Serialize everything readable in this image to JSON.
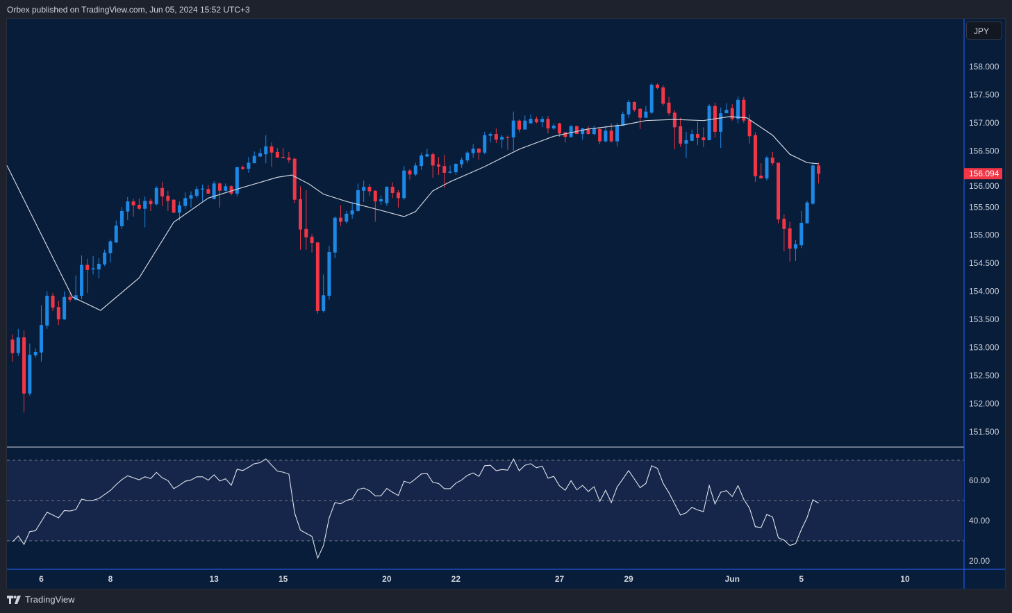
{
  "header": {
    "publisher_line": "Orbex published on TradingView.com, Jun 05, 2024 15:52 UTC+3"
  },
  "price_axis": {
    "currency_button": "JPY",
    "last_price_label": "156.094"
  },
  "footer": {
    "brand": "TradingView",
    "logo_icon": "tradingview-logo-icon"
  },
  "colors": {
    "background": "#071d3a",
    "outer": "#1e222d",
    "up": "#1e88e5",
    "down": "#f23645",
    "ma_line": "#d1d4dc",
    "rsi_line": "#e0e3eb",
    "rsi_band": "#15264a",
    "axis_line": "#2962ff"
  },
  "chart_data": {
    "type": "candlestick",
    "price_ticks": [
      "158.000",
      "157.500",
      "157.000",
      "156.500",
      "156.000",
      "155.500",
      "155.000",
      "154.500",
      "154.000",
      "153.500",
      "153.000",
      "152.500",
      "152.000",
      "151.500"
    ],
    "price_range": [
      151.3,
      158.38
    ],
    "last_price": 156.094,
    "time_ticks": [
      {
        "label": "6",
        "index": 5
      },
      {
        "label": "8",
        "index": 17
      },
      {
        "label": "13",
        "index": 35
      },
      {
        "label": "15",
        "index": 47
      },
      {
        "label": "20",
        "index": 65
      },
      {
        "label": "22",
        "index": 77
      },
      {
        "label": "27",
        "index": 95
      },
      {
        "label": "29",
        "index": 107
      },
      {
        "label": "Jun",
        "index": 125
      },
      {
        "label": "5",
        "index": 137
      },
      {
        "label": "10",
        "index": 155
      }
    ],
    "candles_ohlc": [
      [
        153.14,
        153.23,
        152.75,
        152.9
      ],
      [
        152.9,
        153.33,
        152.85,
        153.18
      ],
      [
        153.18,
        153.3,
        151.84,
        152.18
      ],
      [
        152.18,
        153.07,
        152.14,
        152.87
      ],
      [
        152.86,
        152.98,
        152.82,
        152.92
      ],
      [
        152.91,
        153.75,
        152.75,
        153.4
      ],
      [
        153.39,
        154.0,
        153.33,
        153.92
      ],
      [
        153.92,
        153.97,
        153.65,
        153.71
      ],
      [
        153.72,
        153.83,
        153.4,
        153.5
      ],
      [
        153.5,
        154.0,
        153.49,
        153.9
      ],
      [
        153.9,
        153.96,
        153.81,
        153.85
      ],
      [
        153.85,
        154.28,
        153.83,
        153.93
      ],
      [
        153.92,
        154.64,
        153.86,
        154.47
      ],
      [
        154.47,
        154.58,
        153.97,
        154.38
      ],
      [
        154.4,
        154.63,
        154.3,
        154.41
      ],
      [
        154.39,
        154.59,
        154.23,
        154.49
      ],
      [
        154.48,
        154.74,
        154.45,
        154.69
      ],
      [
        154.68,
        154.92,
        154.51,
        154.89
      ],
      [
        154.87,
        155.26,
        154.86,
        155.17
      ],
      [
        155.16,
        155.5,
        155.11,
        155.43
      ],
      [
        155.42,
        155.68,
        155.27,
        155.6
      ],
      [
        155.6,
        155.65,
        155.33,
        155.53
      ],
      [
        155.54,
        155.65,
        155.45,
        155.47
      ],
      [
        155.47,
        155.69,
        155.14,
        155.61
      ],
      [
        155.61,
        155.65,
        155.43,
        155.55
      ],
      [
        155.55,
        155.87,
        155.53,
        155.84
      ],
      [
        155.84,
        155.95,
        155.52,
        155.69
      ],
      [
        155.7,
        155.79,
        155.43,
        155.61
      ],
      [
        155.63,
        155.64,
        155.39,
        155.4
      ],
      [
        155.4,
        155.6,
        155.26,
        155.53
      ],
      [
        155.52,
        155.76,
        155.47,
        155.66
      ],
      [
        155.65,
        155.78,
        155.49,
        155.71
      ],
      [
        155.7,
        155.87,
        155.66,
        155.82
      ],
      [
        155.82,
        155.9,
        155.6,
        155.83
      ],
      [
        155.82,
        155.89,
        155.73,
        155.74
      ],
      [
        155.64,
        155.96,
        155.64,
        155.92
      ],
      [
        155.92,
        155.94,
        155.49,
        155.79
      ],
      [
        155.79,
        155.92,
        155.78,
        155.87
      ],
      [
        155.87,
        155.89,
        155.71,
        155.74
      ],
      [
        155.74,
        156.22,
        155.69,
        156.21
      ],
      [
        156.21,
        156.24,
        156.16,
        156.18
      ],
      [
        156.18,
        156.39,
        156.11,
        156.29
      ],
      [
        156.28,
        156.49,
        156.28,
        156.41
      ],
      [
        156.4,
        156.54,
        156.39,
        156.46
      ],
      [
        156.44,
        156.78,
        156.28,
        156.58
      ],
      [
        156.58,
        156.65,
        156.22,
        156.47
      ],
      [
        156.48,
        156.55,
        156.38,
        156.38
      ],
      [
        156.39,
        156.55,
        156.38,
        156.38
      ],
      [
        156.38,
        156.48,
        156.29,
        156.34
      ],
      [
        156.36,
        156.38,
        155.57,
        155.63
      ],
      [
        155.64,
        155.87,
        154.74,
        155.1
      ],
      [
        155.11,
        155.8,
        154.74,
        154.96
      ],
      [
        154.97,
        155.02,
        154.69,
        154.86
      ],
      [
        154.87,
        154.87,
        153.6,
        153.65
      ],
      [
        153.65,
        154.3,
        153.62,
        153.93
      ],
      [
        153.92,
        154.81,
        153.85,
        154.7
      ],
      [
        154.69,
        155.33,
        154.59,
        155.31
      ],
      [
        155.31,
        155.53,
        155.16,
        155.24
      ],
      [
        155.24,
        155.43,
        155.21,
        155.38
      ],
      [
        155.37,
        155.59,
        155.29,
        155.44
      ],
      [
        155.43,
        155.92,
        155.42,
        155.8
      ],
      [
        155.79,
        155.97,
        155.59,
        155.86
      ],
      [
        155.86,
        155.91,
        155.7,
        155.78
      ],
      [
        155.79,
        155.8,
        155.24,
        155.6
      ],
      [
        155.6,
        155.71,
        155.54,
        155.64
      ],
      [
        155.57,
        155.87,
        155.52,
        155.86
      ],
      [
        155.86,
        155.94,
        155.66,
        155.75
      ],
      [
        155.76,
        155.8,
        155.49,
        155.66
      ],
      [
        155.66,
        156.23,
        155.63,
        156.15
      ],
      [
        156.15,
        156.18,
        155.99,
        156.08
      ],
      [
        156.08,
        156.29,
        156.05,
        156.24
      ],
      [
        156.23,
        156.47,
        156.16,
        156.42
      ],
      [
        156.4,
        156.54,
        156.39,
        156.44
      ],
      [
        156.44,
        156.47,
        156.02,
        156.24
      ],
      [
        156.26,
        156.39,
        156.07,
        156.22
      ],
      [
        156.23,
        156.43,
        155.84,
        156.11
      ],
      [
        156.12,
        156.24,
        156.1,
        156.13
      ],
      [
        156.12,
        156.28,
        156.07,
        156.27
      ],
      [
        156.26,
        156.38,
        156.2,
        156.34
      ],
      [
        156.33,
        156.5,
        156.28,
        156.47
      ],
      [
        156.46,
        156.62,
        156.38,
        156.54
      ],
      [
        156.54,
        156.55,
        156.34,
        156.47
      ],
      [
        156.47,
        156.84,
        156.44,
        156.78
      ],
      [
        156.77,
        156.83,
        156.65,
        156.8
      ],
      [
        156.8,
        156.9,
        156.64,
        156.7
      ],
      [
        156.7,
        156.79,
        156.55,
        156.75
      ],
      [
        156.75,
        156.77,
        156.52,
        156.74
      ],
      [
        156.74,
        157.2,
        156.5,
        157.04
      ],
      [
        157.04,
        157.06,
        156.83,
        156.88
      ],
      [
        156.88,
        157.13,
        156.88,
        157.04
      ],
      [
        156.99,
        157.15,
        156.99,
        157.07
      ],
      [
        157.07,
        157.11,
        156.99,
        157.01
      ],
      [
        157.01,
        157.12,
        156.92,
        157.07
      ],
      [
        157.07,
        157.12,
        156.81,
        156.9
      ],
      [
        156.9,
        156.99,
        156.88,
        156.95
      ],
      [
        156.99,
        157.0,
        156.75,
        156.81
      ],
      [
        156.83,
        156.84,
        156.65,
        156.75
      ],
      [
        156.75,
        156.96,
        156.73,
        156.94
      ],
      [
        156.94,
        156.95,
        156.8,
        156.8
      ],
      [
        156.8,
        156.91,
        156.7,
        156.9
      ],
      [
        156.9,
        156.94,
        156.79,
        156.8
      ],
      [
        156.8,
        156.95,
        156.78,
        156.9
      ],
      [
        156.89,
        156.92,
        156.62,
        156.67
      ],
      [
        156.67,
        156.95,
        156.65,
        156.86
      ],
      [
        156.86,
        156.99,
        156.65,
        156.67
      ],
      [
        156.67,
        157.0,
        156.58,
        156.96
      ],
      [
        156.95,
        157.2,
        156.94,
        157.16
      ],
      [
        157.15,
        157.41,
        157.09,
        157.37
      ],
      [
        157.37,
        157.38,
        157.2,
        157.23
      ],
      [
        157.25,
        157.26,
        156.89,
        157.09
      ],
      [
        157.09,
        157.3,
        157.09,
        157.2
      ],
      [
        157.18,
        157.7,
        157.16,
        157.68
      ],
      [
        157.68,
        157.7,
        157.6,
        157.62
      ],
      [
        157.63,
        157.67,
        157.3,
        157.34
      ],
      [
        157.36,
        157.46,
        157.13,
        157.17
      ],
      [
        157.18,
        157.22,
        156.53,
        156.92
      ],
      [
        156.94,
        157.09,
        156.57,
        156.63
      ],
      [
        156.63,
        156.84,
        156.37,
        156.69
      ],
      [
        156.68,
        156.88,
        156.67,
        156.8
      ],
      [
        156.8,
        157.02,
        156.6,
        156.73
      ],
      [
        156.74,
        156.92,
        156.57,
        156.69
      ],
      [
        156.69,
        157.33,
        156.69,
        157.3
      ],
      [
        157.3,
        157.36,
        156.74,
        156.84
      ],
      [
        156.84,
        157.27,
        156.55,
        157.17
      ],
      [
        157.17,
        157.35,
        157.17,
        157.23
      ],
      [
        157.26,
        157.33,
        157.04,
        157.07
      ],
      [
        157.07,
        157.47,
        156.99,
        157.41
      ],
      [
        157.41,
        157.46,
        157.0,
        157.04
      ],
      [
        157.05,
        157.15,
        156.63,
        156.76
      ],
      [
        156.78,
        156.83,
        155.95,
        156.05
      ],
      [
        156.06,
        156.28,
        156.01,
        156.01
      ],
      [
        156.01,
        156.41,
        155.97,
        156.38
      ],
      [
        156.38,
        156.48,
        156.24,
        156.28
      ],
      [
        156.29,
        156.29,
        155.21,
        155.28
      ],
      [
        155.29,
        155.37,
        154.71,
        155.11
      ],
      [
        155.12,
        155.24,
        154.53,
        154.76
      ],
      [
        154.76,
        154.91,
        154.54,
        154.84
      ],
      [
        154.82,
        155.43,
        154.77,
        155.22
      ],
      [
        155.21,
        155.61,
        155.21,
        155.58
      ],
      [
        155.56,
        156.29,
        155.54,
        156.24
      ],
      [
        156.24,
        156.29,
        155.92,
        156.094
      ]
    ],
    "moving_average_points": [
      [
        -1,
        156.24
      ],
      [
        10.4,
        153.9
      ],
      [
        15.3,
        153.66
      ],
      [
        22,
        154.24
      ],
      [
        28,
        155.23
      ],
      [
        34,
        155.66
      ],
      [
        40,
        155.85
      ],
      [
        46,
        156.03
      ],
      [
        48.5,
        156.07
      ],
      [
        51.5,
        155.91
      ],
      [
        54,
        155.73
      ],
      [
        58,
        155.6
      ],
      [
        64,
        155.44
      ],
      [
        68,
        155.33
      ],
      [
        70,
        155.42
      ],
      [
        73,
        155.79
      ],
      [
        76,
        155.95
      ],
      [
        82,
        156.22
      ],
      [
        88,
        156.53
      ],
      [
        94,
        156.76
      ],
      [
        100,
        156.89
      ],
      [
        106,
        156.96
      ],
      [
        110,
        157.04
      ],
      [
        115,
        157.06
      ],
      [
        120,
        157.04
      ],
      [
        124.5,
        157.11
      ],
      [
        127.5,
        157.09
      ],
      [
        132,
        156.78
      ],
      [
        135,
        156.44
      ],
      [
        138,
        156.29
      ],
      [
        140,
        156.27
      ]
    ],
    "rsi": {
      "ticks": [
        "60.00",
        "40.00",
        "20.00"
      ],
      "tick_values": [
        60,
        40,
        20
      ],
      "levels": [
        70,
        50,
        30
      ],
      "range": [
        15.5,
        77
      ],
      "values": [
        29.5,
        32.4,
        28.2,
        34.6,
        35.0,
        39.6,
        44.2,
        42.8,
        41.4,
        45.0,
        44.8,
        45.5,
        50.7,
        50.0,
        50.1,
        51.0,
        53.0,
        55.0,
        57.9,
        60.4,
        62.3,
        61.3,
        60.3,
        61.8,
        60.9,
        64.0,
        61.3,
        59.9,
        55.9,
        57.6,
        59.6,
        60.2,
        61.8,
        61.8,
        60.1,
        62.8,
        59.7,
        60.8,
        57.6,
        65.5,
        64.9,
        66.5,
        68.3,
        68.8,
        70.7,
        67.6,
        64.6,
        64.1,
        63.1,
        43.8,
        35.3,
        33.7,
        32.2,
        21.4,
        27.6,
        41.4,
        49.0,
        48.4,
        50.1,
        50.8,
        55.5,
        56.2,
        54.9,
        52.3,
        52.4,
        56.0,
        54.1,
        52.5,
        59.6,
        58.6,
        60.8,
        63.2,
        63.4,
        59.0,
        58.5,
        55.9,
        55.9,
        58.6,
        60.2,
        62.5,
        63.7,
        62.0,
        67.3,
        67.5,
        64.8,
        65.4,
        65.1,
        70.6,
        64.8,
        67.5,
        68.3,
        66.3,
        67.1,
        61.1,
        62.0,
        57.3,
        55.1,
        59.9,
        55.3,
        57.5,
        54.5,
        56.9,
        49.6,
        55.1,
        49.0,
        56.7,
        60.7,
        64.9,
        60.7,
        56.4,
        58.5,
        67.3,
        66.0,
        58.5,
        53.9,
        48.3,
        42.8,
        43.9,
        46.6,
        45.3,
        44.5,
        57.4,
        48.3,
        54.1,
        54.9,
        52.0,
        57.4,
        50.6,
        46.2,
        37.0,
        36.6,
        43.1,
        41.8,
        31.5,
        30.3,
        27.7,
        28.6,
        35.6,
        41.6,
        50.4,
        48.7
      ]
    }
  }
}
